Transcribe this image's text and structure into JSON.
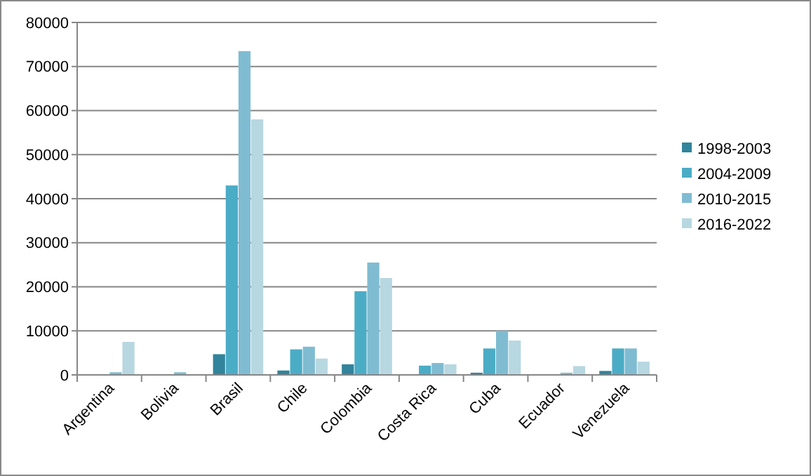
{
  "chart_data": {
    "type": "bar",
    "categories": [
      "Argentina",
      "Bolivia",
      "Brasil",
      "Chile",
      "Colombia",
      "Costa Rica",
      "Cuba",
      "Ecuador",
      "Venezuela"
    ],
    "series": [
      {
        "name": "1998-2003",
        "color": "#31849b",
        "values": [
          0,
          0,
          4700,
          1000,
          2400,
          0,
          500,
          0,
          900
        ]
      },
      {
        "name": "2004-2009",
        "color": "#4bacc6",
        "values": [
          0,
          0,
          43000,
          5800,
          19000,
          2100,
          6000,
          0,
          6000
        ]
      },
      {
        "name": "2010-2015",
        "color": "#7fbcd2",
        "values": [
          600,
          600,
          73500,
          6400,
          25500,
          2700,
          10000,
          500,
          6000
        ]
      },
      {
        "name": "2016-2022",
        "color": "#b7d7e1",
        "values": [
          7500,
          0,
          58000,
          3700,
          22000,
          2400,
          7800,
          2000,
          3000
        ]
      }
    ],
    "ylim": [
      0,
      80000
    ],
    "yticks": [
      0,
      10000,
      20000,
      30000,
      40000,
      50000,
      60000,
      70000,
      80000
    ],
    "grid": "y",
    "legend": "right"
  }
}
